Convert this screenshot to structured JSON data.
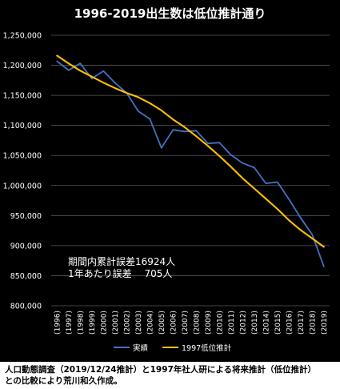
{
  "chart_data": {
    "type": "line",
    "title": "1996-2019出生数は低位推計通り",
    "xlabel": "",
    "ylabel": "",
    "categories": [
      "(1996)",
      "(1997)",
      "(1998)",
      "(1999)",
      "(2000)",
      "(2001)",
      "(2002)",
      "(2003)",
      "(2004)",
      "(2005)",
      "(2006)",
      "(2007)",
      "(2008)",
      "(2009)",
      "(2010)",
      "(2011)",
      "(2012)",
      "(2013)",
      "(2014)",
      "(2015)",
      "(2016)",
      "(2017)",
      "(2018)",
      "(2019)"
    ],
    "ylim": [
      800000,
      1250000
    ],
    "yticks": [
      800000,
      850000,
      900000,
      950000,
      1000000,
      1050000,
      1100000,
      1150000,
      1200000,
      1250000
    ],
    "ytick_labels": [
      "800,000",
      "850,000",
      "900,000",
      "950,000",
      "1,000,000",
      "1,050,000",
      "1,100,000",
      "1,150,000",
      "1,200,000",
      "1,250,000"
    ],
    "grid": true,
    "legend_position": "bottom",
    "series": [
      {
        "name": "実績",
        "color": "#4472C4",
        "values": [
          1206555,
          1191665,
          1203147,
          1177669,
          1190547,
          1170662,
          1153855,
          1123610,
          1110721,
          1062530,
          1092674,
          1089818,
          1091156,
          1070036,
          1071304,
          1050806,
          1037231,
          1029816,
          1003539,
          1005677,
          976978,
          946146,
          918400,
          865239
        ]
      },
      {
        "name": "1997低位推計",
        "color": "#FFC000",
        "values": [
          1216000,
          1203000,
          1191000,
          1181000,
          1171000,
          1162000,
          1154000,
          1147000,
          1137000,
          1125000,
          1110000,
          1097000,
          1082000,
          1066000,
          1049000,
          1031000,
          1012000,
          995000,
          978000,
          961000,
          942000,
          926000,
          912000,
          898000
        ]
      }
    ],
    "annotations": [
      "期間内累計誤差16924人",
      "1年あたり誤差　 705人"
    ]
  },
  "caption": {
    "line1": "人口動態調査（2019/12/24推計）と1997年社人研による将来推計（低位推計）",
    "line2": "との比較により荒川和久作成。"
  }
}
